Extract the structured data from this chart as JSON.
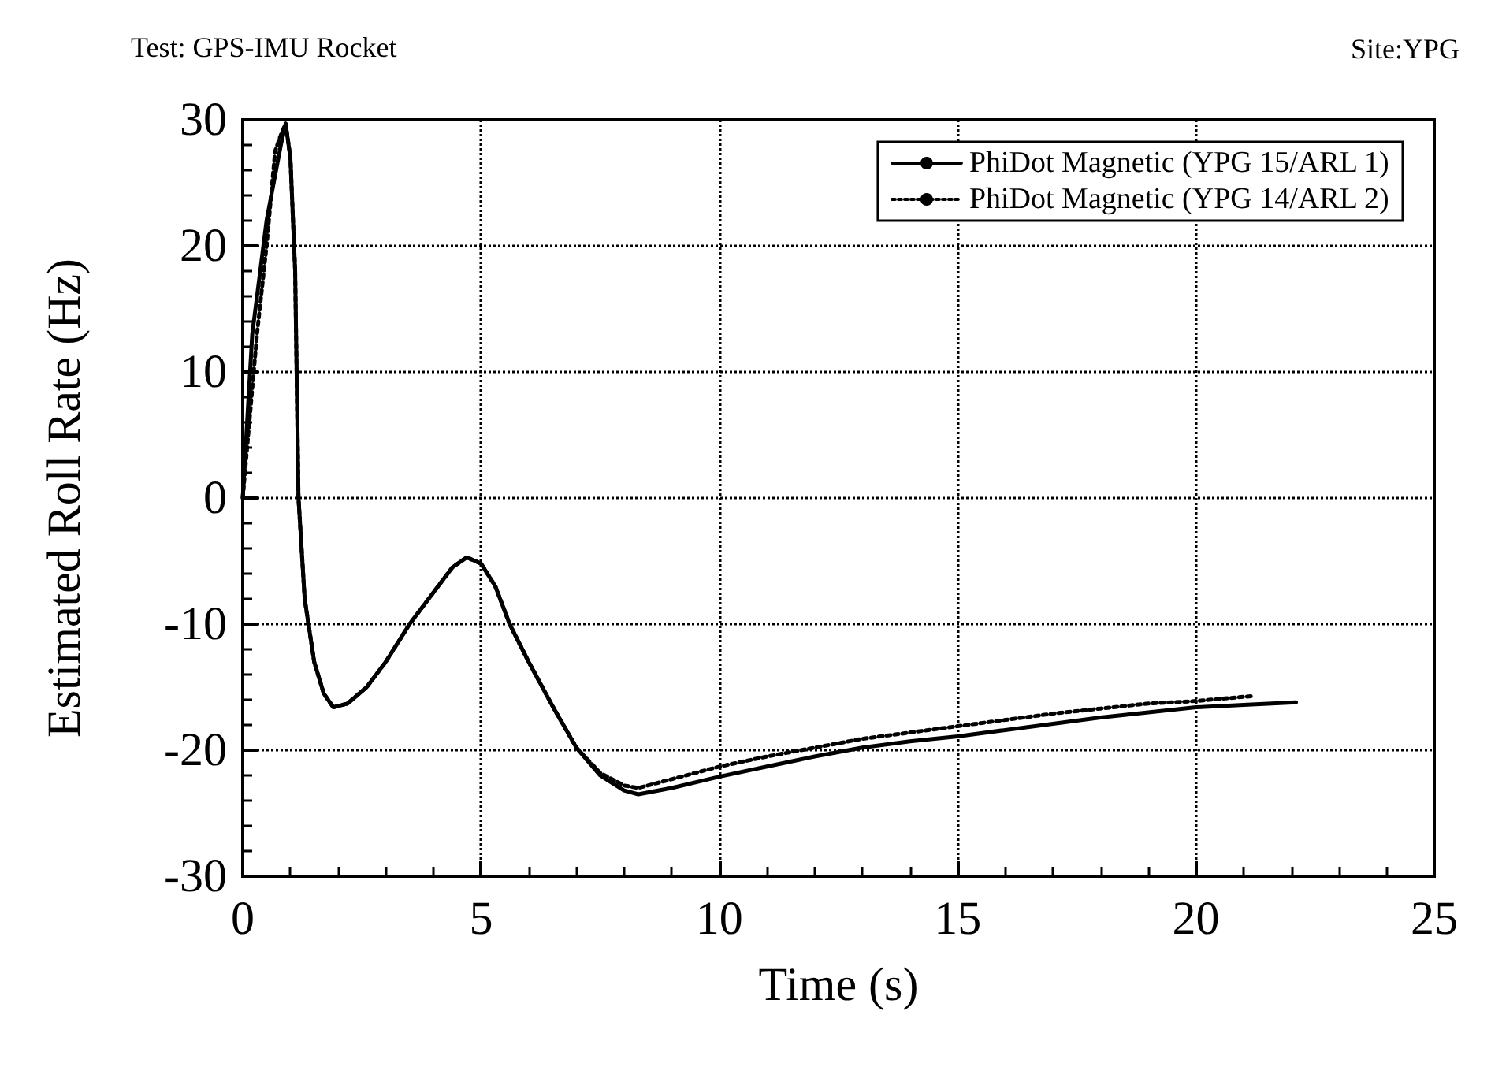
{
  "chart_data": {
    "type": "line",
    "title": "Test: GPS-IMU Rocket",
    "annotations": [
      "Site:YPG"
    ],
    "xlabel": "Time (s)",
    "ylabel": "Estimated Roll Rate (Hz)",
    "xlim": [
      0,
      25
    ],
    "xticks": [
      0,
      5,
      10,
      15,
      20,
      25
    ],
    "ylim": [
      -30,
      30
    ],
    "yticks": [
      -30,
      -20,
      -10,
      0,
      10,
      20,
      30
    ],
    "grid": true,
    "legend": "top right",
    "marker": "none",
    "series": [
      {
        "name": "PhiDot Magnetic (YPG 15/ARL 1)",
        "color": "#000000",
        "line_style": "solid",
        "x": [
          0,
          0.2,
          0.5,
          0.8,
          0.9,
          1.0,
          1.1,
          1.17,
          1.3,
          1.5,
          1.7,
          1.9,
          2.2,
          2.6,
          3.0,
          3.5,
          4.0,
          4.4,
          4.7,
          5.0,
          5.3,
          5.6,
          6.0,
          6.5,
          7.0,
          7.5,
          8.0,
          8.3,
          9.0,
          10,
          11,
          12,
          13,
          14,
          15,
          16,
          17,
          18,
          19,
          20,
          21,
          22.1
        ],
        "values": [
          0,
          13,
          22,
          28,
          29.7,
          27,
          18,
          0,
          -8,
          -13,
          -15.5,
          -16.6,
          -16.3,
          -15,
          -13,
          -10,
          -7.5,
          -5.5,
          -4.7,
          -5.2,
          -7,
          -10,
          -13,
          -16.5,
          -19.8,
          -22,
          -23.2,
          -23.5,
          -23,
          -22.1,
          -21.3,
          -20.5,
          -19.8,
          -19.3,
          -18.9,
          -18.4,
          -17.9,
          -17.4,
          -17,
          -16.6,
          -16.4,
          -16.2
        ]
      },
      {
        "name": "PhiDot Magnetic (YPG 14/ARL 2)",
        "color": "#000000",
        "line_style": "dotted",
        "x": [
          0,
          0.3,
          0.5,
          0.68,
          0.8,
          0.9,
          1.0,
          1.1,
          1.17,
          1.3,
          1.5,
          1.7,
          1.9,
          2.2,
          2.6,
          3.0,
          3.5,
          4.0,
          4.4,
          4.7,
          5.0,
          5.3,
          5.6,
          6.0,
          6.5,
          7.0,
          7.5,
          8.0,
          8.3,
          9.0,
          10,
          11,
          12,
          13,
          14,
          15,
          16,
          17,
          18,
          19,
          20,
          21.2
        ],
        "values": [
          0,
          13,
          20,
          27.5,
          28.8,
          29.7,
          27,
          18,
          0,
          -8,
          -13,
          -15.5,
          -16.6,
          -16.3,
          -15,
          -13,
          -10,
          -7.5,
          -5.5,
          -4.7,
          -5.2,
          -7,
          -10,
          -13,
          -16.5,
          -19.8,
          -21.8,
          -22.8,
          -23,
          -22.3,
          -21.3,
          -20.5,
          -19.8,
          -19.1,
          -18.6,
          -18.1,
          -17.6,
          -17.1,
          -16.7,
          -16.3,
          -16.1,
          -15.7
        ]
      }
    ]
  }
}
